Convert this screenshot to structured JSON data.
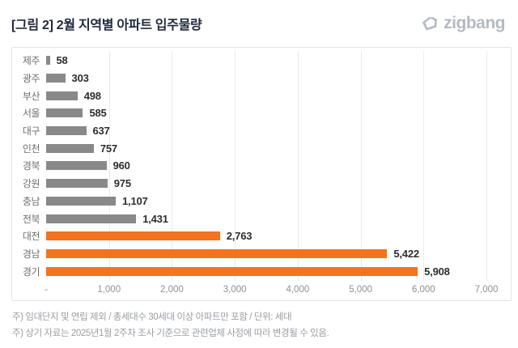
{
  "header": {
    "title": "[그림 2] 2월 지역별 아파트 입주물량",
    "logo_text": "zigbang"
  },
  "chart_data": {
    "type": "bar",
    "orientation": "horizontal",
    "title": "[그림 2] 2월 지역별 아파트 입주물량",
    "unit": "세대",
    "categories": [
      "제주",
      "광주",
      "부산",
      "서울",
      "대구",
      "인천",
      "경북",
      "강원",
      "충남",
      "전북",
      "대전",
      "경남",
      "경기"
    ],
    "values": [
      58,
      303,
      498,
      585,
      637,
      757,
      960,
      975,
      1107,
      1431,
      2763,
      5422,
      5908
    ],
    "value_labels": [
      "58",
      "303",
      "498",
      "585",
      "637",
      "757",
      "960",
      "975",
      "1,107",
      "1,431",
      "2,763",
      "5,422",
      "5,908"
    ],
    "highlight_indices": [
      10,
      11,
      12
    ],
    "palette": {
      "default": "#898989",
      "highlight": "#f4731d"
    },
    "x_ticks": [
      "-",
      "1,000",
      "2,000",
      "3,000",
      "4,000",
      "5,000",
      "6,000",
      "7,000"
    ],
    "xlim": [
      0,
      7000
    ],
    "grid": "vertical",
    "legend": "none"
  },
  "footnotes": [
    "주) 임대단지 및 연립 제외 / 총세대수 30세대 이상 아파트만 포함 / 단위: 세대",
    "주) 상기 자료는 2025년1월 2주차 조사 기준으로 관련업체 사정에 따라 변경될 수 있음."
  ],
  "colors": {
    "title": "#222a3d",
    "logo": "#b5bac2",
    "bar_gray": "#898989",
    "bar_orange": "#f4731d"
  }
}
